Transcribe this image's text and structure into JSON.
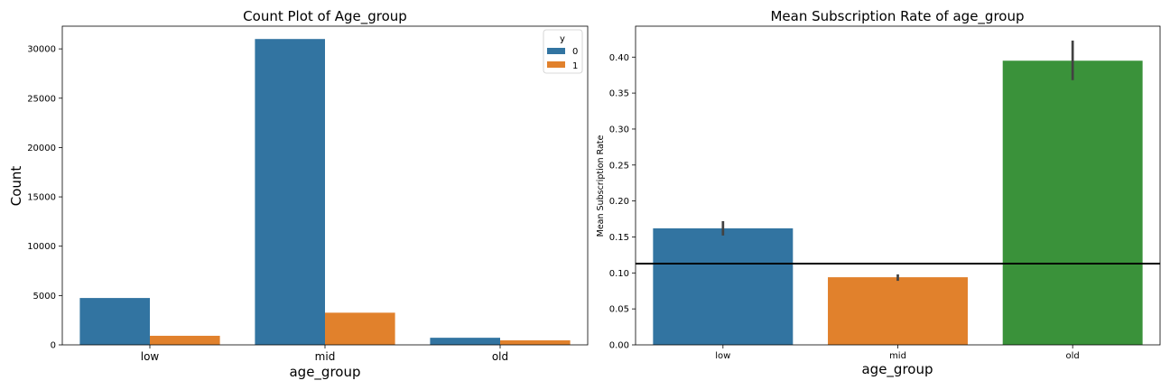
{
  "chart_data": [
    {
      "type": "bar",
      "title": "Count Plot of Age_group",
      "xlabel": "age_group",
      "ylabel": "Count",
      "categories": [
        "low",
        "mid",
        "old"
      ],
      "series": [
        {
          "name": "0",
          "values": [
            4750,
            31000,
            720
          ]
        },
        {
          "name": "1",
          "values": [
            920,
            3260,
            460
          ]
        }
      ],
      "ylim": [
        0,
        32300
      ],
      "yticks": [
        0,
        5000,
        10000,
        15000,
        20000,
        25000,
        30000
      ],
      "ytick_labels": [
        "0",
        "5000",
        "10000",
        "15000",
        "20000",
        "25000",
        "30000"
      ],
      "legend": {
        "title": "y",
        "position": "top-right"
      },
      "colors": [
        "#3274a1",
        "#e1812c"
      ],
      "grid": false
    },
    {
      "type": "bar",
      "title": "Mean Subscription Rate of age_group",
      "xlabel": "age_group",
      "ylabel": "Mean Subscription Rate",
      "categories": [
        "low",
        "mid",
        "old"
      ],
      "values": [
        0.162,
        0.094,
        0.395
      ],
      "error_bars": [
        [
          0.152,
          0.172
        ],
        [
          0.089,
          0.098
        ],
        [
          0.368,
          0.423
        ]
      ],
      "reference_line": 0.113,
      "ylim": [
        0,
        0.443
      ],
      "yticks": [
        0,
        0.05,
        0.1,
        0.15,
        0.2,
        0.25,
        0.3,
        0.35,
        0.4
      ],
      "ytick_labels": [
        "0.00",
        "0.05",
        "0.10",
        "0.15",
        "0.20",
        "0.25",
        "0.30",
        "0.35",
        "0.40"
      ],
      "colors": [
        "#3274a1",
        "#e1812c",
        "#3a923a"
      ],
      "grid": false
    }
  ]
}
